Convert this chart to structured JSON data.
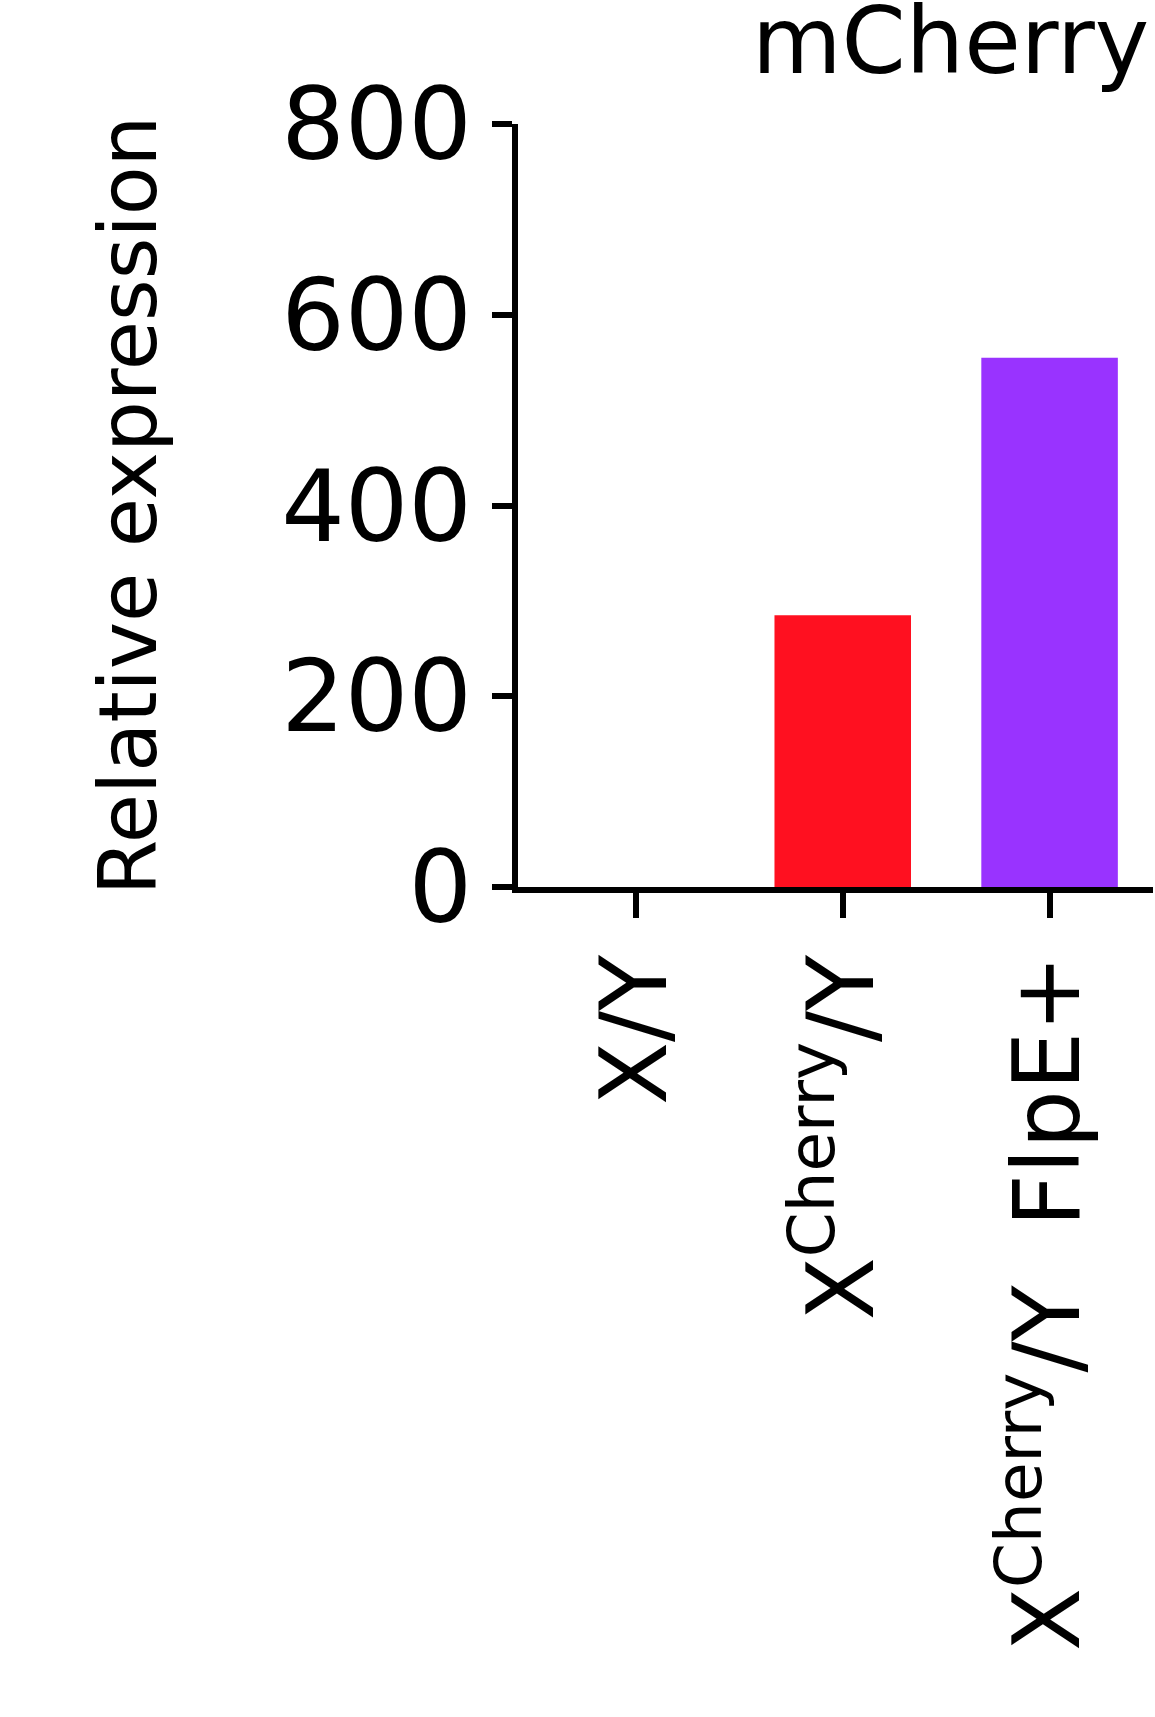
{
  "chart_data": {
    "type": "bar",
    "title": "mCherry",
    "ylabel": "Relative expression",
    "categories": [
      "X/Y",
      "X$^{Cherry}$/Y",
      "X$^{Cherry}$/Y  FlpE+"
    ],
    "values": [
      0,
      285,
      555
    ],
    "colors": [
      "#000000",
      "#ff1020",
      "#9933ff"
    ],
    "ylim": [
      0,
      800
    ],
    "yticks": [
      0,
      200,
      400,
      600,
      800
    ]
  }
}
